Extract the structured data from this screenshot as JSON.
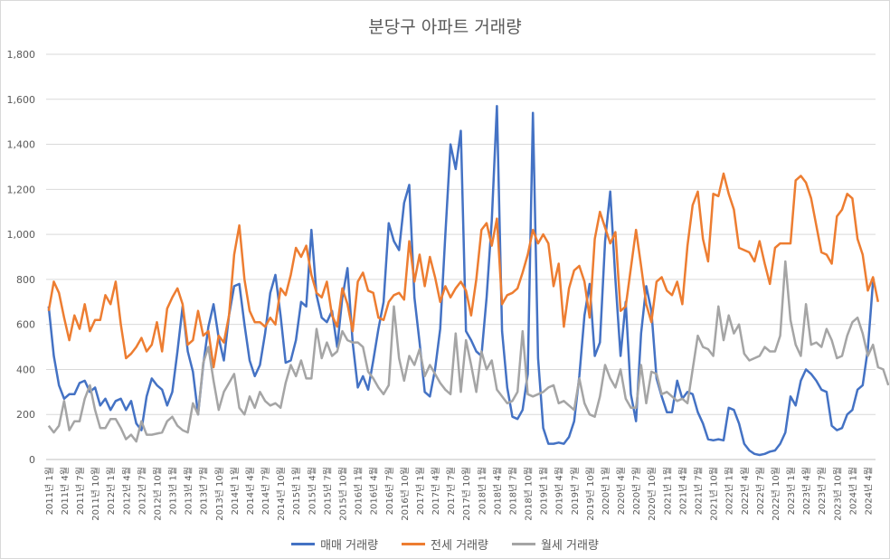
{
  "chart_data": {
    "type": "line",
    "title": "분당구 아파트 거래량",
    "xlabel": "",
    "ylabel": "",
    "ylim": [
      0,
      1800
    ],
    "yticks": [
      "0",
      "200",
      "400",
      "600",
      "800",
      "1,000",
      "1,200",
      "1,400",
      "1,600",
      "1,800"
    ],
    "grid": true,
    "legend_position": "bottom",
    "x_tick_labels": [
      "2011년 1월",
      "2011년 4월",
      "2011년 7월",
      "2011년 10월",
      "2012년 1월",
      "2012년 4월",
      "2012년 7월",
      "2012년 10월",
      "2013년 1월",
      "2013년 4월",
      "2013년 7월",
      "2013년 10월",
      "2014년 1월",
      "2014년 4월",
      "2014년 7월",
      "2014년 10월",
      "2015년 1월",
      "2015년 4월",
      "2015년 7월",
      "2015년 10월",
      "2016년 1월",
      "2016년 4월",
      "2016년 7월",
      "2016년 10월",
      "2017년 1월",
      "2017년 4월",
      "2017년 7월",
      "2017년 10월",
      "2018년 1월",
      "2018년 4월",
      "2018년 7월",
      "2018년 10월",
      "2019년 1월",
      "2019년 4월",
      "2019년 7월",
      "2019년 10월",
      "2020년 1월",
      "2020년 4월",
      "2020년 7월",
      "2020년 10월",
      "2021년 1월",
      "2021년 4월",
      "2021년 7월",
      "2021년 10월",
      "2022년 1월",
      "2022년 4월",
      "2022년 7월",
      "2022년 10월",
      "2023년 1월",
      "2023년 4월",
      "2023년 7월",
      "2023년 10월",
      "2024년 1월",
      "2024년 4월"
    ],
    "series": [
      {
        "name": "매매 거래량",
        "color": "#4472C4",
        "values": [
          680,
          460,
          330,
          270,
          290,
          290,
          340,
          350,
          300,
          320,
          240,
          270,
          220,
          260,
          270,
          220,
          260,
          160,
          130,
          280,
          360,
          330,
          310,
          240,
          300,
          480,
          680,
          480,
          390,
          200,
          420,
          590,
          690,
          540,
          440,
          640,
          770,
          780,
          600,
          440,
          370,
          420,
          560,
          740,
          820,
          640,
          430,
          440,
          530,
          700,
          680,
          1020,
          730,
          630,
          610,
          660,
          500,
          720,
          850,
          520,
          320,
          370,
          310,
          440,
          580,
          700,
          1050,
          970,
          930,
          1140,
          1220,
          720,
          520,
          300,
          280,
          400,
          580,
          1000,
          1400,
          1290,
          1460,
          570,
          530,
          480,
          460,
          720,
          1060,
          1570,
          570,
          320,
          190,
          180,
          220,
          380,
          1540,
          450,
          140,
          70,
          70,
          75,
          70,
          100,
          170,
          370,
          640,
          780,
          460,
          520,
          970,
          1190,
          800,
          460,
          700,
          290,
          170,
          560,
          770,
          660,
          360,
          280,
          210,
          210,
          350,
          270,
          300,
          290,
          210,
          160,
          90,
          85,
          90,
          85,
          230,
          220,
          160,
          70,
          40,
          25,
          20,
          25,
          35,
          40,
          70,
          120,
          280,
          240,
          350,
          400,
          380,
          350,
          310,
          300,
          150,
          130,
          140,
          200,
          220,
          310,
          330,
          490,
          790
        ]
      },
      {
        "name": "전세 거래량",
        "color": "#ED7D31",
        "values": [
          660,
          790,
          740,
          630,
          530,
          640,
          580,
          690,
          570,
          620,
          620,
          730,
          690,
          790,
          600,
          450,
          470,
          500,
          540,
          480,
          510,
          610,
          480,
          670,
          720,
          760,
          690,
          510,
          530,
          660,
          550,
          570,
          410,
          550,
          520,
          640,
          910,
          1040,
          800,
          660,
          610,
          610,
          590,
          630,
          600,
          760,
          730,
          820,
          940,
          900,
          950,
          820,
          740,
          720,
          790,
          640,
          590,
          760,
          690,
          570,
          790,
          830,
          750,
          740,
          630,
          620,
          700,
          730,
          740,
          710,
          970,
          790,
          910,
          770,
          900,
          810,
          700,
          770,
          720,
          760,
          790,
          750,
          640,
          800,
          1020,
          1050,
          950,
          1070,
          690,
          730,
          740,
          760,
          830,
          910,
          1020,
          960,
          1000,
          960,
          770,
          870,
          590,
          760,
          840,
          860,
          790,
          630,
          980,
          1100,
          1030,
          960,
          1010,
          660,
          680,
          850,
          1020,
          860,
          690,
          610,
          790,
          810,
          750,
          730,
          790,
          690,
          950,
          1130,
          1190,
          980,
          880,
          1180,
          1170,
          1270,
          1180,
          1110,
          940,
          930,
          920,
          880,
          970,
          870,
          780,
          940,
          960,
          960,
          960,
          1240,
          1260,
          1230,
          1160,
          1040,
          920,
          910,
          870,
          1080,
          1110,
          1180,
          1160,
          980,
          910,
          750,
          810,
          700
        ]
      },
      {
        "name": "월세 거래량",
        "color": "#A5A5A5",
        "values": [
          150,
          120,
          150,
          260,
          130,
          170,
          170,
          270,
          330,
          220,
          140,
          140,
          180,
          180,
          140,
          90,
          110,
          80,
          170,
          110,
          110,
          115,
          120,
          170,
          190,
          150,
          130,
          120,
          250,
          200,
          430,
          500,
          350,
          220,
          300,
          340,
          380,
          230,
          200,
          280,
          230,
          300,
          260,
          240,
          250,
          230,
          340,
          420,
          370,
          440,
          360,
          360,
          580,
          450,
          520,
          460,
          480,
          570,
          530,
          520,
          520,
          500,
          390,
          360,
          320,
          290,
          330,
          680,
          450,
          350,
          460,
          420,
          490,
          370,
          420,
          380,
          340,
          310,
          290,
          560,
          300,
          530,
          420,
          300,
          480,
          400,
          440,
          310,
          280,
          250,
          260,
          300,
          570,
          290,
          280,
          290,
          300,
          320,
          330,
          250,
          260,
          240,
          220,
          360,
          250,
          200,
          190,
          280,
          420,
          360,
          320,
          400,
          270,
          230,
          230,
          420,
          250,
          390,
          380,
          290,
          300,
          280,
          260,
          270,
          250,
          400,
          550,
          500,
          490,
          460,
          680,
          530,
          640,
          560,
          600,
          470,
          440,
          450,
          460,
          500,
          480,
          480,
          550,
          880,
          620,
          510,
          460,
          690,
          510,
          520,
          500,
          580,
          530,
          450,
          460,
          550,
          610,
          630,
          560,
          460,
          510,
          410,
          400,
          330
        ]
      }
    ]
  }
}
